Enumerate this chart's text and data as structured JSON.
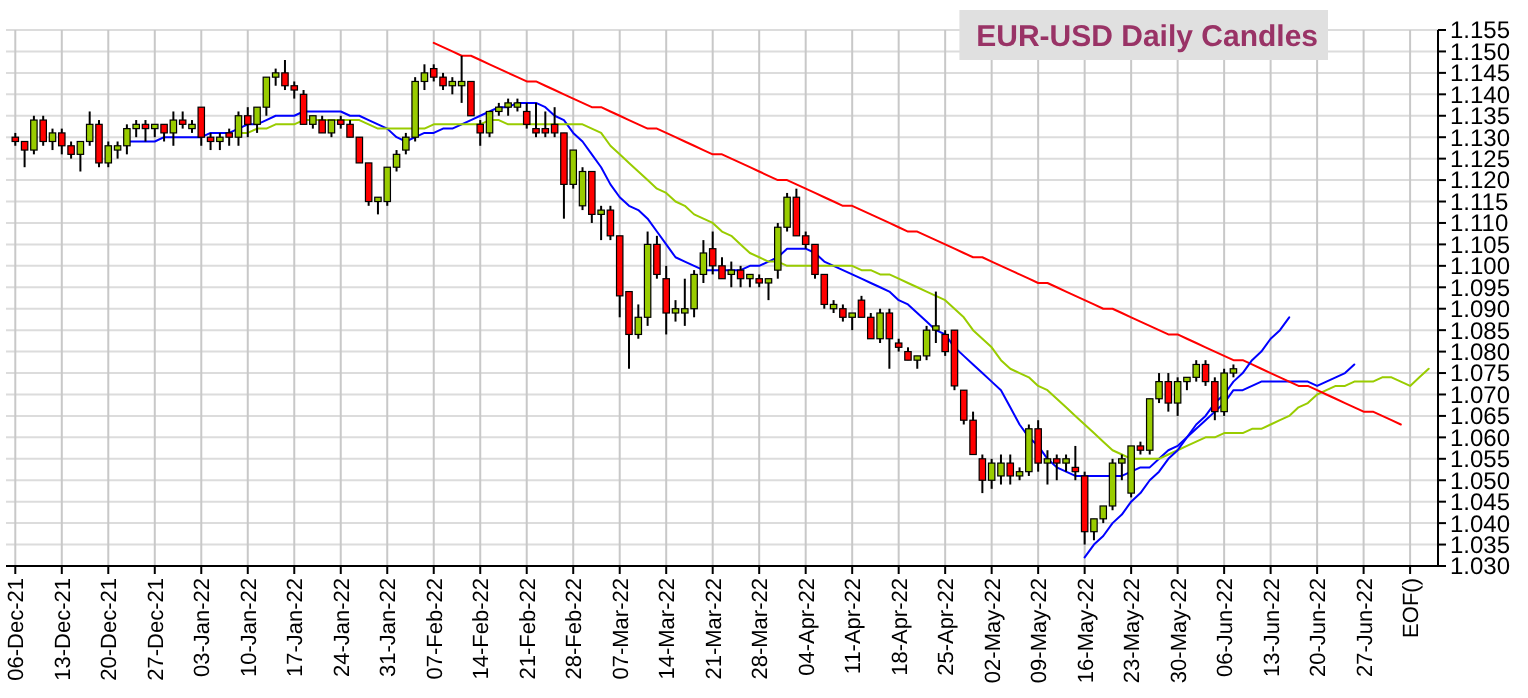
{
  "chart_data": {
    "type": "candlestick",
    "title": "EUR-USD Daily Candles",
    "categories": [
      "06-Dec-21",
      null,
      null,
      null,
      null,
      "13-Dec-21",
      null,
      null,
      null,
      null,
      "20-Dec-21",
      null,
      null,
      null,
      null,
      "27-Dec-21",
      null,
      null,
      null,
      null,
      "03-Jan-22",
      null,
      null,
      null,
      null,
      "10-Jan-22",
      null,
      null,
      null,
      null,
      "17-Jan-22",
      null,
      null,
      null,
      null,
      "24-Jan-22",
      null,
      null,
      null,
      null,
      "31-Jan-22",
      null,
      null,
      null,
      null,
      "07-Feb-22",
      null,
      null,
      null,
      null,
      "14-Feb-22",
      null,
      null,
      null,
      null,
      "21-Feb-22",
      null,
      null,
      null,
      null,
      "28-Feb-22",
      null,
      null,
      null,
      null,
      "07-Mar-22",
      null,
      null,
      null,
      null,
      "14-Mar-22",
      null,
      null,
      null,
      null,
      "21-Mar-22",
      null,
      null,
      null,
      null,
      "28-Mar-22",
      null,
      null,
      null,
      null,
      "04-Apr-22",
      null,
      null,
      null,
      null,
      "11-Apr-22",
      null,
      null,
      null,
      null,
      "18-Apr-22",
      null,
      null,
      null,
      null,
      "25-Apr-22",
      null,
      null,
      null,
      null,
      "02-May-22",
      null,
      null,
      null,
      null,
      "09-May-22",
      null,
      null,
      null,
      null,
      "16-May-22",
      null,
      null,
      null,
      null,
      "23-May-22",
      null,
      null,
      null,
      null,
      "30-May-22",
      null,
      null,
      null,
      null,
      "06-Jun-22",
      null,
      null,
      null,
      null,
      "13-Jun-22",
      null,
      null,
      null,
      null,
      "20-Jun-22",
      null,
      null,
      null,
      null,
      "27-Jun-22",
      null,
      null,
      null,
      null,
      "EOF()",
      null,
      null
    ],
    "ohlc": [
      [
        1.13,
        1.131,
        1.128,
        1.129
      ],
      [
        1.129,
        1.129,
        1.123,
        1.127
      ],
      [
        1.127,
        1.135,
        1.126,
        1.134
      ],
      [
        1.134,
        1.135,
        1.128,
        1.129
      ],
      [
        1.129,
        1.132,
        1.127,
        1.131
      ],
      [
        1.131,
        1.132,
        1.126,
        1.128
      ],
      [
        1.128,
        1.129,
        1.125,
        1.126
      ],
      [
        1.126,
        1.129,
        1.122,
        1.129
      ],
      [
        1.129,
        1.136,
        1.128,
        1.133
      ],
      [
        1.133,
        1.134,
        1.123,
        1.124
      ],
      [
        1.124,
        1.129,
        1.123,
        1.128
      ],
      [
        1.127,
        1.129,
        1.125,
        1.128
      ],
      [
        1.128,
        1.133,
        1.126,
        1.132
      ],
      [
        1.132,
        1.134,
        1.13,
        1.133
      ],
      [
        1.133,
        1.134,
        1.129,
        1.132
      ],
      [
        1.132,
        1.133,
        1.13,
        1.133
      ],
      [
        1.133,
        1.133,
        1.129,
        1.131
      ],
      [
        1.131,
        1.136,
        1.128,
        1.134
      ],
      [
        1.134,
        1.136,
        1.132,
        1.133
      ],
      [
        1.132,
        1.134,
        1.131,
        1.133
      ],
      [
        1.137,
        1.137,
        1.128,
        1.13
      ],
      [
        1.13,
        1.131,
        1.127,
        1.129
      ],
      [
        1.129,
        1.131,
        1.127,
        1.13
      ],
      [
        1.131,
        1.132,
        1.128,
        1.13
      ],
      [
        1.13,
        1.136,
        1.128,
        1.135
      ],
      [
        1.135,
        1.137,
        1.13,
        1.133
      ],
      [
        1.133,
        1.137,
        1.131,
        1.137
      ],
      [
        1.137,
        1.144,
        1.135,
        1.144
      ],
      [
        1.144,
        1.146,
        1.142,
        1.145
      ],
      [
        1.145,
        1.148,
        1.141,
        1.142
      ],
      [
        1.142,
        1.143,
        1.139,
        1.141
      ],
      [
        1.14,
        1.141,
        1.133,
        1.133
      ],
      [
        1.133,
        1.135,
        1.132,
        1.135
      ],
      [
        1.134,
        1.135,
        1.131,
        1.131
      ],
      [
        1.131,
        1.134,
        1.13,
        1.134
      ],
      [
        1.134,
        1.135,
        1.132,
        1.133
      ],
      [
        1.133,
        1.134,
        1.13,
        1.13
      ],
      [
        1.13,
        1.13,
        1.124,
        1.124
      ],
      [
        1.124,
        1.124,
        1.114,
        1.115
      ],
      [
        1.115,
        1.116,
        1.112,
        1.116
      ],
      [
        1.115,
        1.123,
        1.114,
        1.123
      ],
      [
        1.123,
        1.127,
        1.122,
        1.126
      ],
      [
        1.127,
        1.131,
        1.126,
        1.13
      ],
      [
        1.13,
        1.144,
        1.129,
        1.143
      ],
      [
        1.143,
        1.147,
        1.141,
        1.145
      ],
      [
        1.146,
        1.147,
        1.143,
        1.144
      ],
      [
        1.144,
        1.145,
        1.141,
        1.142
      ],
      [
        1.142,
        1.144,
        1.14,
        1.143
      ],
      [
        1.142,
        1.149,
        1.138,
        1.143
      ],
      [
        1.143,
        1.143,
        1.135,
        1.135
      ],
      [
        1.133,
        1.134,
        1.128,
        1.131
      ],
      [
        1.131,
        1.136,
        1.13,
        1.136
      ],
      [
        1.136,
        1.138,
        1.135,
        1.137
      ],
      [
        1.137,
        1.139,
        1.135,
        1.138
      ],
      [
        1.137,
        1.139,
        1.136,
        1.138
      ],
      [
        1.136,
        1.138,
        1.132,
        1.133
      ],
      [
        1.132,
        1.138,
        1.13,
        1.131
      ],
      [
        1.132,
        1.136,
        1.13,
        1.131
      ],
      [
        1.133,
        1.137,
        1.13,
        1.131
      ],
      [
        1.131,
        1.131,
        1.111,
        1.119
      ],
      [
        1.119,
        1.127,
        1.118,
        1.127
      ],
      [
        1.114,
        1.123,
        1.113,
        1.122
      ],
      [
        1.122,
        1.122,
        1.11,
        1.112
      ],
      [
        1.112,
        1.114,
        1.106,
        1.113
      ],
      [
        1.113,
        1.114,
        1.106,
        1.107
      ],
      [
        1.107,
        1.107,
        1.088,
        1.093
      ],
      [
        1.094,
        1.094,
        1.076,
        1.084
      ],
      [
        1.084,
        1.091,
        1.083,
        1.088
      ],
      [
        1.088,
        1.108,
        1.086,
        1.105
      ],
      [
        1.105,
        1.107,
        1.097,
        1.098
      ],
      [
        1.097,
        1.1,
        1.084,
        1.089
      ],
      [
        1.089,
        1.092,
        1.087,
        1.09
      ],
      [
        1.089,
        1.097,
        1.086,
        1.09
      ],
      [
        1.09,
        1.099,
        1.088,
        1.098
      ],
      [
        1.098,
        1.106,
        1.096,
        1.103
      ],
      [
        1.104,
        1.108,
        1.098,
        1.1
      ],
      [
        1.1,
        1.102,
        1.097,
        1.097
      ],
      [
        1.098,
        1.101,
        1.095,
        1.099
      ],
      [
        1.099,
        1.1,
        1.095,
        1.097
      ],
      [
        1.097,
        1.098,
        1.095,
        1.098
      ],
      [
        1.097,
        1.098,
        1.095,
        1.096
      ],
      [
        1.096,
        1.097,
        1.092,
        1.097
      ],
      [
        1.099,
        1.11,
        1.097,
        1.109
      ],
      [
        1.109,
        1.117,
        1.108,
        1.116
      ],
      [
        1.116,
        1.118,
        1.107,
        1.107
      ],
      [
        1.107,
        1.108,
        1.104,
        1.105
      ],
      [
        1.105,
        1.105,
        1.097,
        1.098
      ],
      [
        1.098,
        1.098,
        1.09,
        1.091
      ],
      [
        1.09,
        1.092,
        1.089,
        1.091
      ],
      [
        1.09,
        1.091,
        1.087,
        1.088
      ],
      [
        1.088,
        1.089,
        1.085,
        1.089
      ],
      [
        1.092,
        1.093,
        1.088,
        1.088
      ],
      [
        1.088,
        1.089,
        1.083,
        1.083
      ],
      [
        1.083,
        1.09,
        1.082,
        1.089
      ],
      [
        1.089,
        1.09,
        1.076,
        1.083
      ],
      [
        1.082,
        1.083,
        1.08,
        1.081
      ],
      [
        1.08,
        1.081,
        1.078,
        1.078
      ],
      [
        1.078,
        1.079,
        1.076,
        1.079
      ],
      [
        1.079,
        1.086,
        1.078,
        1.085
      ],
      [
        1.085,
        1.094,
        1.082,
        1.086
      ],
      [
        1.084,
        1.085,
        1.079,
        1.08
      ],
      [
        1.085,
        1.085,
        1.071,
        1.072
      ],
      [
        1.071,
        1.071,
        1.063,
        1.064
      ],
      [
        1.064,
        1.066,
        1.056,
        1.056
      ],
      [
        1.055,
        1.056,
        1.047,
        1.05
      ],
      [
        1.05,
        1.055,
        1.048,
        1.054
      ],
      [
        1.051,
        1.056,
        1.049,
        1.054
      ],
      [
        1.054,
        1.056,
        1.049,
        1.051
      ],
      [
        1.051,
        1.053,
        1.05,
        1.052
      ],
      [
        1.052,
        1.063,
        1.051,
        1.062
      ],
      [
        1.062,
        1.064,
        1.052,
        1.054
      ],
      [
        1.054,
        1.057,
        1.049,
        1.055
      ],
      [
        1.055,
        1.056,
        1.05,
        1.054
      ],
      [
        1.054,
        1.056,
        1.052,
        1.055
      ],
      [
        1.053,
        1.058,
        1.05,
        1.052
      ],
      [
        1.051,
        1.052,
        1.035,
        1.038
      ],
      [
        1.038,
        1.041,
        1.036,
        1.041
      ],
      [
        1.041,
        1.044,
        1.04,
        1.044
      ],
      [
        1.044,
        1.055,
        1.043,
        1.054
      ],
      [
        1.054,
        1.056,
        1.05,
        1.055
      ],
      [
        1.047,
        1.058,
        1.046,
        1.058
      ],
      [
        1.058,
        1.059,
        1.056,
        1.057
      ],
      [
        1.057,
        1.069,
        1.056,
        1.069
      ],
      [
        1.069,
        1.075,
        1.068,
        1.073
      ],
      [
        1.073,
        1.075,
        1.066,
        1.068
      ],
      [
        1.068,
        1.074,
        1.065,
        1.073
      ],
      [
        1.073,
        1.074,
        1.071,
        1.074
      ],
      [
        1.074,
        1.078,
        1.073,
        1.077
      ],
      [
        1.077,
        1.078,
        1.072,
        1.073
      ],
      [
        1.073,
        1.074,
        1.064,
        1.066
      ],
      [
        1.066,
        1.076,
        1.065,
        1.075
      ],
      [
        1.075,
        1.077,
        1.074,
        1.076
      ],
      null,
      null,
      null,
      null,
      null,
      null,
      null,
      null,
      null,
      null,
      null,
      null,
      null,
      null,
      null,
      null,
      null,
      null,
      null,
      null,
      null
    ],
    "colors": [
      "#ff0000",
      "#ff0000",
      "#99cc00",
      "#ff0000",
      "#99cc00",
      "#ff0000",
      "#ff0000",
      "#99cc00",
      "#99cc00",
      "#ff0000",
      "#99cc00",
      "#99cc00",
      "#99cc00",
      "#99cc00",
      "#ff0000",
      "#99cc00",
      "#ff0000",
      "#99cc00",
      "#ff0000",
      "#99cc00",
      "#ff0000",
      "#ff0000",
      "#99cc00",
      "#ff0000",
      "#99cc00",
      "#ff0000",
      "#99cc00",
      "#99cc00",
      "#99cc00",
      "#ff0000",
      "#ff0000",
      "#ff0000",
      "#99cc00",
      "#ff0000",
      "#99cc00",
      "#ff0000",
      "#ff0000",
      "#ff0000",
      "#ff0000",
      "#99cc00",
      "#99cc00",
      "#99cc00",
      "#99cc00",
      "#99cc00",
      "#99cc00",
      "#ff0000",
      "#ff0000",
      "#99cc00",
      "#99cc00",
      "#ff0000",
      "#ff0000",
      "#99cc00",
      "#99cc00",
      "#99cc00",
      "#99cc00",
      "#ff0000",
      "#ff0000",
      "#ff0000",
      "#ff0000",
      "#ff0000",
      "#99cc00",
      "#99cc00",
      "#ff0000",
      "#99cc00",
      "#ff0000",
      "#ff0000",
      "#ff0000",
      "#99cc00",
      "#99cc00",
      "#ff0000",
      "#ff0000",
      "#99cc00",
      "#99cc00",
      "#99cc00",
      "#99cc00",
      "#ff0000",
      "#ff0000",
      "#99cc00",
      "#ff0000",
      "#99cc00",
      "#ff0000",
      "#99cc00",
      "#99cc00",
      "#99cc00",
      "#ff0000",
      "#ff0000",
      "#ff0000",
      "#ff0000",
      "#99cc00",
      "#ff0000",
      "#99cc00",
      "#ff0000",
      "#ff0000",
      "#99cc00",
      "#ff0000",
      "#ff0000",
      "#ff0000",
      "#99cc00",
      "#99cc00",
      "#99cc00",
      "#ff0000",
      "#ff0000",
      "#ff0000",
      "#ff0000",
      "#ff0000",
      "#99cc00",
      "#99cc00",
      "#ff0000",
      "#99cc00",
      "#99cc00",
      "#ff0000",
      "#99cc00",
      "#ff0000",
      "#99cc00",
      "#ff0000",
      "#ff0000",
      "#99cc00",
      "#99cc00",
      "#99cc00",
      "#99cc00",
      "#99cc00",
      "#ff0000",
      "#99cc00",
      "#99cc00",
      "#ff0000",
      "#99cc00",
      "#99cc00",
      "#99cc00",
      "#ff0000",
      "#ff0000",
      "#99cc00",
      "#99cc00",
      null,
      null,
      null,
      null,
      null,
      null,
      null,
      null,
      null,
      null,
      null,
      null,
      null,
      null,
      null,
      null,
      null,
      null,
      null,
      null,
      null
    ],
    "series": [
      {
        "type": "line",
        "color": "#0000ff",
        "values": [
          null,
          null,
          null,
          null,
          null,
          null,
          null,
          null,
          null,
          null,
          null,
          null,
          1.129,
          1.129,
          1.129,
          1.129,
          1.13,
          1.13,
          1.13,
          1.13,
          1.13,
          1.131,
          1.131,
          1.131,
          1.132,
          1.133,
          1.133,
          1.134,
          1.135,
          1.135,
          1.135,
          1.136,
          1.136,
          1.136,
          1.136,
          1.136,
          1.135,
          1.135,
          1.134,
          1.133,
          1.132,
          1.13,
          1.129,
          1.13,
          1.131,
          1.131,
          1.132,
          1.132,
          1.133,
          1.134,
          1.135,
          1.136,
          1.137,
          1.137,
          1.138,
          1.138,
          1.138,
          1.137,
          1.135,
          1.134,
          1.131,
          1.129,
          1.126,
          1.123,
          1.119,
          1.116,
          1.114,
          1.113,
          1.111,
          1.108,
          1.105,
          1.102,
          1.101,
          1.1,
          1.099,
          1.099,
          1.099,
          1.099,
          1.099,
          1.1,
          1.1,
          1.101,
          1.102,
          1.104,
          1.104,
          1.104,
          1.103,
          1.101,
          1.1,
          1.099,
          1.098,
          1.097,
          1.096,
          1.095,
          1.094,
          1.092,
          1.091,
          1.089,
          1.087,
          1.085,
          1.084,
          1.081,
          1.079,
          1.077,
          1.075,
          1.073,
          1.071,
          1.067,
          1.063,
          1.06,
          1.058,
          1.055,
          1.053,
          1.052,
          1.051,
          1.051,
          1.051,
          1.051,
          1.051,
          1.051,
          1.052,
          1.053,
          1.053,
          1.055,
          1.057,
          1.058,
          1.06,
          1.062,
          1.064,
          1.066,
          1.068,
          1.071,
          1.071,
          1.072,
          1.073,
          1.073,
          1.073,
          1.073,
          1.073,
          1.073,
          1.072,
          1.073,
          1.074,
          1.075,
          1.077,
          null,
          null,
          null,
          null,
          null,
          null,
          null,
          null
        ]
      },
      {
        "type": "line",
        "color": "#99cc00",
        "values": [
          null,
          null,
          null,
          null,
          null,
          null,
          null,
          null,
          null,
          null,
          null,
          null,
          null,
          null,
          null,
          null,
          null,
          null,
          null,
          null,
          null,
          null,
          null,
          null,
          1.131,
          1.131,
          1.132,
          1.132,
          1.133,
          1.133,
          1.133,
          1.134,
          1.134,
          1.134,
          1.134,
          1.134,
          1.134,
          1.134,
          1.133,
          1.132,
          1.132,
          1.132,
          1.132,
          1.132,
          1.132,
          1.133,
          1.133,
          1.133,
          1.133,
          1.133,
          1.133,
          1.134,
          1.134,
          1.133,
          1.133,
          1.133,
          1.133,
          1.133,
          1.133,
          1.133,
          1.133,
          1.133,
          1.132,
          1.131,
          1.128,
          1.126,
          1.124,
          1.122,
          1.12,
          1.118,
          1.117,
          1.115,
          1.114,
          1.112,
          1.111,
          1.11,
          1.108,
          1.107,
          1.105,
          1.103,
          1.102,
          1.101,
          1.101,
          1.1,
          1.1,
          1.1,
          1.1,
          1.1,
          1.1,
          1.1,
          1.1,
          1.099,
          1.099,
          1.098,
          1.098,
          1.097,
          1.096,
          1.095,
          1.094,
          1.093,
          1.092,
          1.09,
          1.088,
          1.085,
          1.083,
          1.081,
          1.078,
          1.076,
          1.075,
          1.074,
          1.072,
          1.071,
          1.069,
          1.067,
          1.065,
          1.063,
          1.061,
          1.059,
          1.057,
          1.056,
          1.055,
          1.055,
          1.055,
          1.055,
          1.056,
          1.057,
          1.058,
          1.059,
          1.06,
          1.06,
          1.061,
          1.061,
          1.061,
          1.062,
          1.062,
          1.063,
          1.064,
          1.065,
          1.067,
          1.068,
          1.07,
          1.071,
          1.072,
          1.072,
          1.073,
          1.073,
          1.073,
          1.074,
          1.074,
          1.073,
          1.072,
          1.074,
          1.076
        ]
      },
      {
        "type": "line",
        "color": "#ff0000",
        "values": [
          null,
          null,
          null,
          null,
          null,
          null,
          null,
          null,
          null,
          null,
          null,
          null,
          null,
          null,
          null,
          null,
          null,
          null,
          null,
          null,
          null,
          null,
          null,
          null,
          null,
          null,
          null,
          null,
          null,
          null,
          null,
          null,
          null,
          null,
          null,
          null,
          null,
          null,
          null,
          null,
          null,
          null,
          null,
          null,
          null,
          1.152,
          1.151,
          1.15,
          1.149,
          1.149,
          1.148,
          1.147,
          1.146,
          1.145,
          1.144,
          1.143,
          1.143,
          1.142,
          1.141,
          1.14,
          1.139,
          1.138,
          1.137,
          1.137,
          1.136,
          1.135,
          1.134,
          1.133,
          1.132,
          1.132,
          1.131,
          1.13,
          1.129,
          1.128,
          1.127,
          1.126,
          1.126,
          1.125,
          1.124,
          1.123,
          1.122,
          1.121,
          1.12,
          1.12,
          1.119,
          1.118,
          1.117,
          1.116,
          1.115,
          1.114,
          1.114,
          1.113,
          1.112,
          1.111,
          1.11,
          1.109,
          1.108,
          1.108,
          1.107,
          1.106,
          1.105,
          1.104,
          1.103,
          1.102,
          1.102,
          1.101,
          1.1,
          1.099,
          1.098,
          1.097,
          1.096,
          1.096,
          1.095,
          1.094,
          1.093,
          1.092,
          1.091,
          1.09,
          1.09,
          1.089,
          1.088,
          1.087,
          1.086,
          1.085,
          1.084,
          1.084,
          1.083,
          1.082,
          1.081,
          1.08,
          1.079,
          1.078,
          1.078,
          1.077,
          1.076,
          1.075,
          1.074,
          1.073,
          1.072,
          1.072,
          1.071,
          1.07,
          1.069,
          1.068,
          1.067,
          1.066,
          1.066,
          1.065,
          1.064,
          1.063,
          null,
          null,
          null
        ]
      },
      {
        "type": "line",
        "color": "#0000ff",
        "values": [
          null,
          null,
          null,
          null,
          null,
          null,
          null,
          null,
          null,
          null,
          null,
          null,
          null,
          null,
          null,
          null,
          null,
          null,
          null,
          null,
          null,
          null,
          null,
          null,
          null,
          null,
          null,
          null,
          null,
          null,
          null,
          null,
          null,
          null,
          null,
          null,
          null,
          null,
          null,
          null,
          null,
          null,
          null,
          null,
          null,
          null,
          null,
          null,
          null,
          null,
          null,
          null,
          null,
          null,
          null,
          null,
          null,
          null,
          null,
          null,
          null,
          null,
          null,
          null,
          null,
          null,
          null,
          null,
          null,
          null,
          null,
          null,
          null,
          null,
          null,
          null,
          null,
          null,
          null,
          null,
          null,
          null,
          null,
          null,
          null,
          null,
          null,
          null,
          null,
          null,
          null,
          null,
          null,
          null,
          null,
          null,
          null,
          null,
          null,
          null,
          null,
          null,
          null,
          null,
          null,
          null,
          null,
          null,
          null,
          null,
          null,
          null,
          null,
          null,
          null,
          1.032,
          1.035,
          1.037,
          1.04,
          1.042,
          1.045,
          1.047,
          1.05,
          1.052,
          1.055,
          1.057,
          1.06,
          1.063,
          1.065,
          1.068,
          1.07,
          1.073,
          1.075,
          1.078,
          1.08,
          1.083,
          1.085,
          1.088,
          null,
          null,
          null,
          null,
          null,
          null,
          null,
          null,
          null,
          null,
          null,
          null,
          null,
          null,
          null
        ]
      }
    ],
    "ylim": [
      1.03,
      1.155
    ],
    "yticks": [
      {
        "value": 1.03,
        "label": "1.030"
      },
      1.035,
      {
        "value": 1.04,
        "label": "1.040"
      },
      1.045,
      {
        "value": 1.05,
        "label": "1.050"
      },
      1.055,
      {
        "value": 1.06,
        "label": "1.060"
      },
      1.065,
      {
        "value": 1.07,
        "label": "1.070"
      },
      1.075,
      {
        "value": 1.08,
        "label": "1.080"
      },
      1.085,
      {
        "value": 1.09,
        "label": "1.090"
      },
      1.095,
      {
        "value": 1.1,
        "label": "1.100"
      },
      1.105,
      {
        "value": 1.11,
        "label": "1.110"
      },
      1.115,
      {
        "value": 1.12,
        "label": "1.120"
      },
      1.125,
      {
        "value": 1.13,
        "label": "1.130"
      },
      1.135,
      {
        "value": 1.14,
        "label": "1.140"
      },
      1.145,
      {
        "value": 1.15,
        "label": "1.150"
      },
      1.155
    ],
    "grid": true
  }
}
